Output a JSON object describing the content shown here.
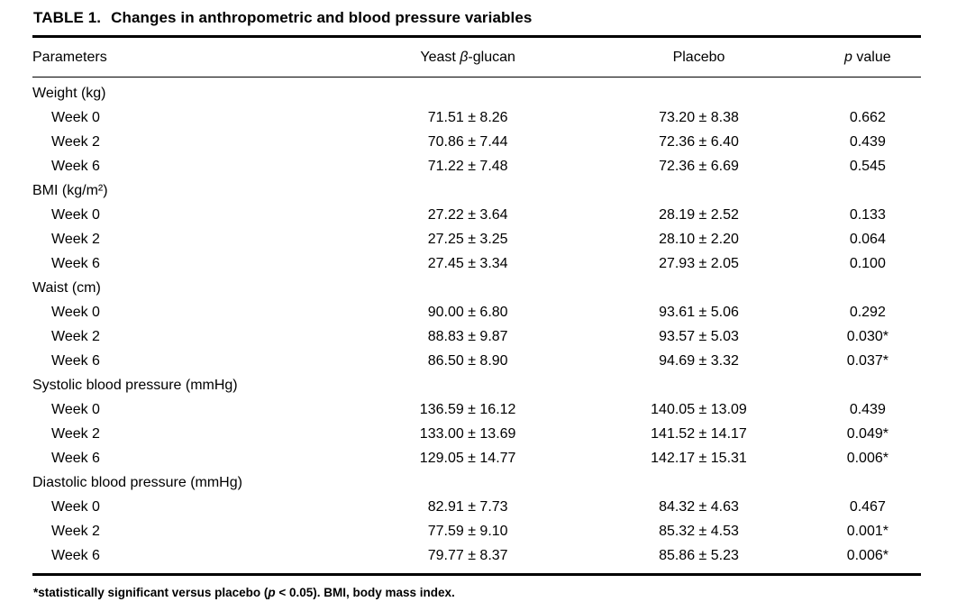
{
  "table": {
    "title_label": "TABLE 1.",
    "title_text": "Changes in anthropometric and blood pressure variables",
    "header": {
      "parameters": "Parameters",
      "glucan_pre": "Yeast ",
      "glucan_italic": "β",
      "glucan_post": "-glucan",
      "placebo": "Placebo",
      "p_italic": "p",
      "p_post": " value"
    },
    "sections": [
      {
        "label": "Weight (kg)",
        "rows": [
          {
            "param": "Week 0",
            "glucan": "71.51 ± 8.26",
            "placebo": "73.20 ± 8.38",
            "p": "0.662"
          },
          {
            "param": "Week 2",
            "glucan": "70.86 ± 7.44",
            "placebo": "72.36 ± 6.40",
            "p": "0.439"
          },
          {
            "param": "Week 6",
            "glucan": "71.22 ± 7.48",
            "placebo": "72.36 ± 6.69",
            "p": "0.545"
          }
        ]
      },
      {
        "label": "BMI (kg/m²)",
        "rows": [
          {
            "param": "Week 0",
            "glucan": "27.22 ± 3.64",
            "placebo": "28.19 ± 2.52",
            "p": "0.133"
          },
          {
            "param": "Week 2",
            "glucan": "27.25 ± 3.25",
            "placebo": "28.10 ± 2.20",
            "p": "0.064"
          },
          {
            "param": "Week 6",
            "glucan": "27.45 ± 3.34",
            "placebo": "27.93 ± 2.05",
            "p": "0.100"
          }
        ]
      },
      {
        "label": "Waist (cm)",
        "rows": [
          {
            "param": "Week 0",
            "glucan": "90.00 ± 6.80",
            "placebo": "93.61 ± 5.06",
            "p": "0.292"
          },
          {
            "param": "Week 2",
            "glucan": "88.83 ± 9.87",
            "placebo": "93.57 ± 5.03",
            "p": "0.030*"
          },
          {
            "param": "Week 6",
            "glucan": "86.50 ± 8.90",
            "placebo": "94.69 ± 3.32",
            "p": "0.037*"
          }
        ]
      },
      {
        "label": "Systolic blood pressure (mmHg)",
        "rows": [
          {
            "param": "Week 0",
            "glucan": "136.59 ± 16.12",
            "placebo": "140.05 ± 13.09",
            "p": "0.439"
          },
          {
            "param": "Week 2",
            "glucan": "133.00 ± 13.69",
            "placebo": "141.52 ± 14.17",
            "p": "0.049*"
          },
          {
            "param": "Week 6",
            "glucan": "129.05 ± 14.77",
            "placebo": "142.17 ± 15.31",
            "p": "0.006*"
          }
        ]
      },
      {
        "label": "Diastolic blood pressure (mmHg)",
        "rows": [
          {
            "param": "Week 0",
            "glucan": "82.91 ± 7.73",
            "placebo": "84.32 ± 4.63",
            "p": "0.467"
          },
          {
            "param": "Week 2",
            "glucan": "77.59 ± 9.10",
            "placebo": "85.32 ± 4.53",
            "p": "0.001*"
          },
          {
            "param": "Week 6",
            "glucan": "79.77 ± 8.37",
            "placebo": "85.86 ± 5.23",
            "p": "0.006*"
          }
        ]
      }
    ],
    "footnote": {
      "pre": "*statistically significant versus placebo (",
      "italic": "p",
      "post": " < 0.05). BMI, body mass index."
    }
  }
}
